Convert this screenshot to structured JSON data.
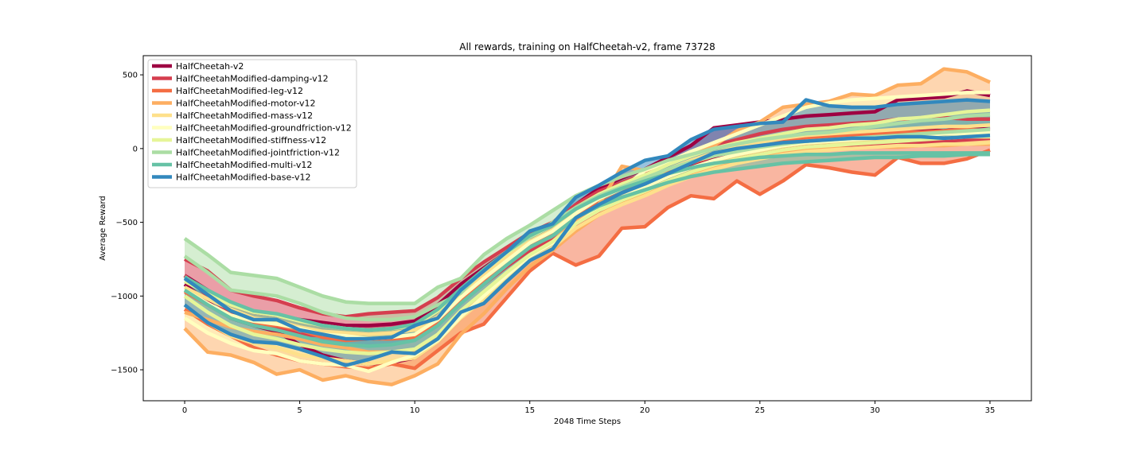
{
  "chart_data": {
    "type": "line",
    "title": "All rewards, training on HalfCheetah-v2, frame 73728",
    "xlabel": "2048 Time Steps",
    "ylabel": "Average Reward",
    "xlim": [
      -1.8,
      36.8
    ],
    "ylim": [
      -1710,
      630
    ],
    "xticks": [
      0,
      5,
      10,
      15,
      20,
      25,
      30,
      35
    ],
    "yticks": [
      -1500,
      -1000,
      -500,
      0,
      500
    ],
    "grid": false,
    "legend_position": "top-left",
    "x": [
      0,
      1,
      2,
      3,
      4,
      5,
      6,
      7,
      8,
      9,
      10,
      11,
      12,
      13,
      14,
      15,
      16,
      17,
      18,
      19,
      20,
      21,
      22,
      23,
      24,
      25,
      26,
      27,
      28,
      29,
      30,
      31,
      32,
      33,
      34,
      35
    ],
    "series": [
      {
        "name": "HalfCheetah-v2",
        "color": "#9e0142",
        "upper": [
          -860,
          -960,
          -1060,
          -1110,
          -1130,
          -1160,
          -1180,
          -1200,
          -1200,
          -1190,
          -1170,
          -1060,
          -920,
          -810,
          -700,
          -590,
          -520,
          -380,
          -270,
          -200,
          -140,
          -60,
          20,
          140,
          160,
          180,
          200,
          220,
          230,
          240,
          250,
          330,
          340,
          350,
          390,
          360
        ],
        "lower": [
          -920,
          -1040,
          -1150,
          -1200,
          -1240,
          -1330,
          -1400,
          -1440,
          -1460,
          -1450,
          -1420,
          -1310,
          -1150,
          -1010,
          -860,
          -720,
          -630,
          -510,
          -420,
          -330,
          -260,
          -180,
          -120,
          -60,
          -10,
          20,
          60,
          80,
          90,
          100,
          110,
          120,
          130,
          120,
          140,
          130
        ]
      },
      {
        "name": "HalfCheetahModified-damping-v12",
        "color": "#d53e4f",
        "upper": [
          -750,
          -830,
          -960,
          -1000,
          -1030,
          -1080,
          -1120,
          -1140,
          -1120,
          -1110,
          -1100,
          -1010,
          -880,
          -770,
          -670,
          -570,
          -500,
          -380,
          -290,
          -230,
          -170,
          -100,
          -30,
          20,
          60,
          100,
          130,
          150,
          160,
          170,
          180,
          200,
          200,
          210,
          200,
          200
        ],
        "lower": [
          -860,
          -1000,
          -1120,
          -1190,
          -1210,
          -1260,
          -1270,
          -1280,
          -1290,
          -1280,
          -1270,
          -1190,
          -1040,
          -920,
          -800,
          -690,
          -620,
          -520,
          -430,
          -360,
          -290,
          -220,
          -160,
          -110,
          -70,
          -40,
          -10,
          10,
          20,
          20,
          30,
          40,
          40,
          50,
          60,
          70
        ]
      },
      {
        "name": "HalfCheetahModified-leg-v12",
        "color": "#f46d43",
        "upper": [
          -970,
          -1060,
          -1150,
          -1190,
          -1200,
          -1230,
          -1280,
          -1300,
          -1290,
          -1290,
          -1280,
          -1190,
          -1040,
          -900,
          -780,
          -670,
          -580,
          -460,
          -370,
          -300,
          -230,
          -160,
          -100,
          -50,
          -10,
          20,
          50,
          70,
          80,
          90,
          100,
          110,
          110,
          120,
          130,
          120
        ],
        "lower": [
          -1090,
          -1190,
          -1270,
          -1350,
          -1400,
          -1440,
          -1460,
          -1480,
          -1490,
          -1460,
          -1490,
          -1370,
          -1250,
          -1190,
          -1010,
          -830,
          -710,
          -790,
          -730,
          -540,
          -530,
          -400,
          -320,
          -340,
          -220,
          -310,
          -220,
          -110,
          -130,
          -160,
          -180,
          -60,
          -100,
          -100,
          -70,
          -10
        ]
      },
      {
        "name": "HalfCheetahModified-motor-v12",
        "color": "#fdae61",
        "upper": [
          -1110,
          -1160,
          -1210,
          -1240,
          -1260,
          -1290,
          -1330,
          -1350,
          -1380,
          -1380,
          -1370,
          -1260,
          -1120,
          -990,
          -860,
          -730,
          -630,
          -490,
          -380,
          -120,
          -150,
          -90,
          -30,
          20,
          120,
          180,
          280,
          300,
          320,
          370,
          360,
          430,
          440,
          540,
          520,
          450
        ],
        "lower": [
          -1220,
          -1380,
          -1400,
          -1450,
          -1530,
          -1500,
          -1570,
          -1540,
          -1580,
          -1600,
          -1540,
          -1460,
          -1260,
          -1120,
          -950,
          -800,
          -690,
          -560,
          -450,
          -370,
          -310,
          -240,
          -180,
          -130,
          -90,
          -60,
          -30,
          -10,
          0,
          0,
          10,
          10,
          20,
          20,
          30,
          30
        ]
      },
      {
        "name": "HalfCheetahModified-mass-v12",
        "color": "#fee08b",
        "upper": [
          -940,
          -1020,
          -1090,
          -1150,
          -1170,
          -1210,
          -1240,
          -1250,
          -1260,
          -1250,
          -1230,
          -1140,
          -990,
          -860,
          -740,
          -630,
          -550,
          -430,
          -340,
          -270,
          -210,
          -140,
          -80,
          -30,
          10,
          40,
          70,
          90,
          100,
          110,
          120,
          130,
          140,
          150,
          150,
          160
        ],
        "lower": [
          -1060,
          -1180,
          -1270,
          -1320,
          -1350,
          -1400,
          -1420,
          -1440,
          -1460,
          -1440,
          -1420,
          -1310,
          -1150,
          -1020,
          -880,
          -760,
          -670,
          -540,
          -450,
          -380,
          -320,
          -250,
          -190,
          -140,
          -100,
          -70,
          -40,
          -20,
          -10,
          0,
          10,
          20,
          20,
          30,
          30,
          40
        ]
      },
      {
        "name": "HalfCheetahModified-groundfriction-v12",
        "color": "#ffffbf",
        "upper": [
          -960,
          -1050,
          -1130,
          -1170,
          -1190,
          -1220,
          -1260,
          -1270,
          -1290,
          -1280,
          -1260,
          -1160,
          -1010,
          -880,
          -760,
          -640,
          -560,
          -440,
          -340,
          -270,
          -150,
          -90,
          -20,
          40,
          100,
          160,
          220,
          280,
          310,
          330,
          340,
          350,
          360,
          370,
          380,
          380
        ],
        "lower": [
          -1150,
          -1250,
          -1320,
          -1370,
          -1390,
          -1440,
          -1460,
          -1470,
          -1510,
          -1450,
          -1400,
          -1300,
          -1140,
          -1000,
          -860,
          -730,
          -640,
          -510,
          -410,
          -330,
          -260,
          -190,
          -130,
          -80,
          -40,
          -10,
          20,
          40,
          50,
          60,
          70,
          80,
          90,
          100,
          100,
          110
        ]
      },
      {
        "name": "HalfCheetahModified-stiffness-v12",
        "color": "#e6f598",
        "upper": [
          -900,
          -980,
          -1060,
          -1110,
          -1130,
          -1170,
          -1200,
          -1220,
          -1230,
          -1220,
          -1200,
          -1100,
          -960,
          -830,
          -710,
          -600,
          -520,
          -400,
          -310,
          -240,
          -180,
          -110,
          -50,
          0,
          40,
          70,
          100,
          130,
          140,
          160,
          170,
          200,
          210,
          230,
          250,
          260
        ],
        "lower": [
          -1000,
          -1110,
          -1200,
          -1260,
          -1290,
          -1330,
          -1360,
          -1380,
          -1390,
          -1380,
          -1360,
          -1260,
          -1100,
          -970,
          -840,
          -720,
          -630,
          -510,
          -420,
          -350,
          -290,
          -220,
          -160,
          -110,
          -70,
          -40,
          -10,
          10,
          20,
          30,
          40,
          50,
          60,
          70,
          80,
          80
        ]
      },
      {
        "name": "HalfCheetahModified-jointfriction-v12",
        "color": "#abdda4",
        "upper": [
          -610,
          -720,
          -840,
          -860,
          -880,
          -940,
          -1000,
          -1040,
          -1050,
          -1050,
          -1050,
          -940,
          -880,
          -720,
          -610,
          -520,
          -420,
          -320,
          -250,
          -190,
          -140,
          -80,
          -40,
          0,
          30,
          60,
          80,
          100,
          110,
          130,
          150,
          170,
          190,
          200,
          220,
          230
        ],
        "lower": [
          -730,
          -840,
          -960,
          -980,
          -1000,
          -1050,
          -1110,
          -1150,
          -1160,
          -1160,
          -1140,
          -1060,
          -980,
          -820,
          -700,
          -600,
          -500,
          -400,
          -320,
          -260,
          -200,
          -140,
          -90,
          -50,
          -20,
          10,
          30,
          50,
          60,
          70,
          80,
          90,
          100,
          110,
          120,
          130
        ]
      },
      {
        "name": "HalfCheetahModified-multi-v12",
        "color": "#66c2a5",
        "upper": [
          -870,
          -960,
          -1040,
          -1100,
          -1120,
          -1160,
          -1200,
          -1220,
          -1230,
          -1220,
          -1190,
          -1090,
          -950,
          -820,
          -700,
          -590,
          -520,
          -410,
          -330,
          -270,
          -220,
          -170,
          -130,
          -100,
          -80,
          -60,
          -50,
          -40,
          -40,
          -30,
          -30,
          -30,
          -30,
          -30,
          -30,
          -30
        ],
        "lower": [
          -960,
          -1060,
          -1150,
          -1200,
          -1230,
          -1270,
          -1310,
          -1330,
          -1340,
          -1330,
          -1300,
          -1200,
          -1050,
          -920,
          -790,
          -670,
          -590,
          -470,
          -390,
          -330,
          -280,
          -230,
          -190,
          -160,
          -140,
          -120,
          -100,
          -90,
          -80,
          -70,
          -60,
          -60,
          -50,
          -50,
          -40,
          -40
        ]
      },
      {
        "name": "HalfCheetahModified-base-v12",
        "color": "#3288bd",
        "upper": [
          -880,
          -990,
          -1100,
          -1160,
          -1160,
          -1230,
          -1260,
          -1290,
          -1290,
          -1280,
          -1200,
          -1150,
          -960,
          -830,
          -700,
          -560,
          -510,
          -330,
          -250,
          -160,
          -80,
          -50,
          60,
          130,
          150,
          170,
          180,
          330,
          290,
          280,
          280,
          300,
          310,
          320,
          330,
          320
        ],
        "lower": [
          -1060,
          -1180,
          -1260,
          -1310,
          -1320,
          -1360,
          -1410,
          -1470,
          -1430,
          -1380,
          -1390,
          -1290,
          -1110,
          -1050,
          -900,
          -760,
          -680,
          -470,
          -380,
          -300,
          -240,
          -170,
          -100,
          -30,
          0,
          20,
          40,
          50,
          60,
          70,
          70,
          80,
          80,
          70,
          80,
          90
        ]
      }
    ]
  }
}
